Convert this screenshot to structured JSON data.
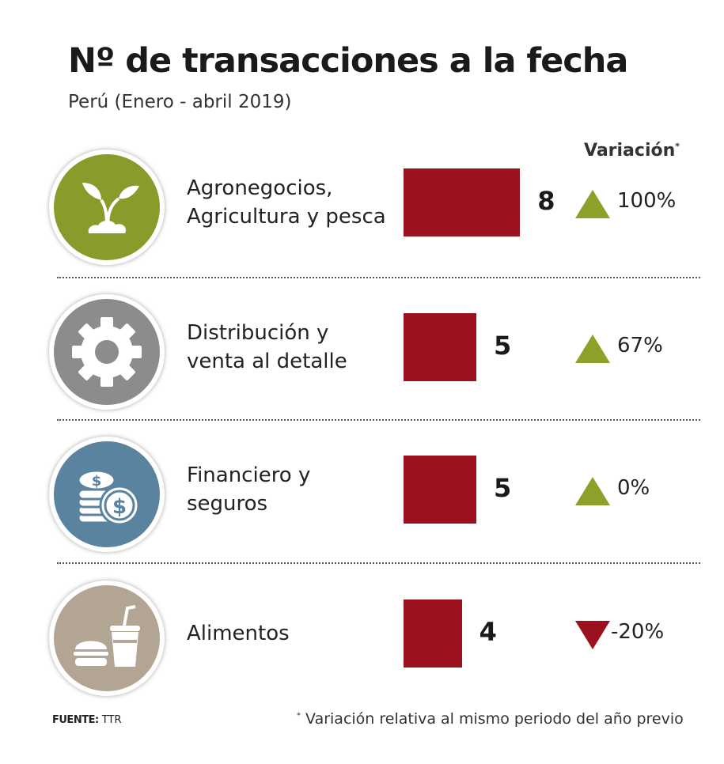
{
  "chart_data": {
    "type": "bar",
    "orientation": "horizontal",
    "title": "Nº de transacciones a la fecha",
    "subtitle": "Perú (Enero - abril 2019)",
    "variation_header": "Variación",
    "variation_marker": "*",
    "categories": [
      "Agronegocios, Agricultura y pesca",
      "Distribución y venta al detalle",
      "Financiero y seguros",
      "Alimentos"
    ],
    "values": [
      8,
      5,
      5,
      4
    ],
    "variations": [
      "100%",
      "67%",
      "0%",
      "-20%"
    ],
    "variation_direction": [
      "up",
      "up",
      "up",
      "down"
    ],
    "icons": [
      "sprout-icon",
      "gear-icon",
      "coins-dollar-icon",
      "burger-drink-icon"
    ],
    "icon_colors": [
      "#8a9a2b",
      "#8c8c8c",
      "#5a83a0",
      "#b2a593"
    ],
    "colors": {
      "bar": "#9b111e",
      "up": "#8fa02a",
      "down": "#9b111e"
    }
  },
  "footer": {
    "source_label": "FUENTE:",
    "source_value": "TTR",
    "note_marker": "*",
    "note": "Variación relativa al mismo periodo del año previo"
  }
}
